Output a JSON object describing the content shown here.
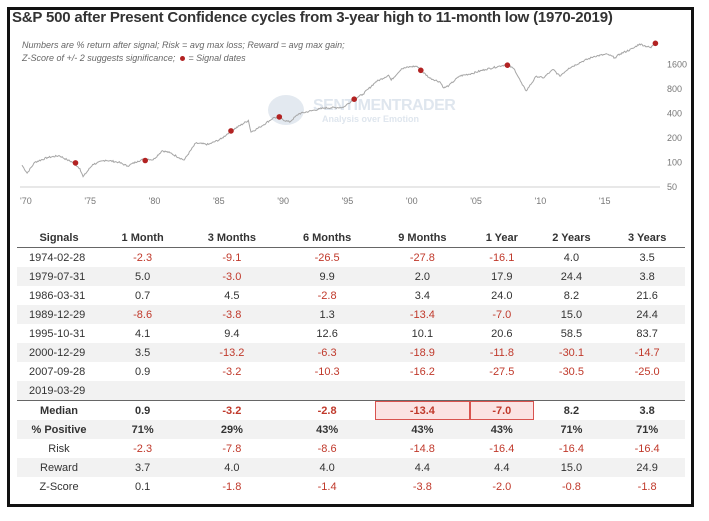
{
  "title": "S&P 500 after Present Confidence cycles from 3-year high to 11-month low (1970-2019)",
  "notes": {
    "line1": "Numbers are % return after signal; Risk = avg max loss; Reward = avg max gain;",
    "line2_prefix": "Z-Score of +/- 2 suggests significance;",
    "line2_suffix": "= Signal dates"
  },
  "watermark": {
    "brand": "SENTIMENTRADER",
    "tagline": "Analysis over Emotion"
  },
  "colors": {
    "line": "#a6a6a6",
    "signal": "#b22222",
    "negative": "#c0392b",
    "highlight_fill": "#fbe3e3",
    "highlight_border": "#d9534f"
  },
  "chart_data": {
    "type": "line",
    "y_scale": "log",
    "x_ticks": [
      "'70",
      "'75",
      "'80",
      "'85",
      "'90",
      "'95",
      "'00",
      "'05",
      "'10",
      "'15"
    ],
    "y_ticks": [
      "50",
      "100",
      "200",
      "400",
      "800",
      "1600"
    ],
    "xlim": [
      1970,
      2019.6
    ],
    "ylim": [
      50,
      3200
    ],
    "series": [
      {
        "x": [
          1970.0,
          1970.4,
          1971.0,
          1972.0,
          1972.9,
          1973.5,
          1974.0,
          1974.5,
          1974.75,
          1975.5,
          1976.5,
          1977.5,
          1978.2,
          1979.0,
          1979.6,
          1980.2,
          1980.9,
          1981.5,
          1982.6,
          1983.5,
          1984.5,
          1985.5,
          1986.2,
          1987.6,
          1987.8,
          1988.5,
          1989.6,
          1990.0,
          1990.8,
          1991.5,
          1992.5,
          1993.5,
          1994.5,
          1995.0,
          1995.8,
          1996.5,
          1997.5,
          1998.5,
          1998.7,
          1999.5,
          2000.2,
          2000.7,
          2001.0,
          2001.7,
          2002.5,
          2002.8,
          2003.2,
          2004.0,
          2005.0,
          2006.0,
          2007.0,
          2007.7,
          2008.3,
          2008.9,
          2009.2,
          2010.0,
          2010.5,
          2011.3,
          2011.8,
          2012.5,
          2013.5,
          2014.5,
          2015.5,
          2016.1,
          2016.5,
          2017.5,
          2018.0,
          2018.9,
          2019.0,
          2019.2
        ],
        "y": [
          90,
          72,
          98,
          112,
          118,
          105,
          97,
          82,
          65,
          92,
          104,
          98,
          88,
          101,
          108,
          105,
          136,
          128,
          104,
          168,
          162,
          190,
          235,
          320,
          230,
          265,
          348,
          340,
          305,
          385,
          420,
          455,
          460,
          465,
          585,
          670,
          950,
          1150,
          1000,
          1380,
          1460,
          1480,
          1320,
          1060,
          950,
          800,
          860,
          1120,
          1210,
          1350,
          1470,
          1560,
          1350,
          870,
          740,
          1120,
          1060,
          1350,
          1120,
          1400,
          1680,
          1960,
          2080,
          1880,
          2100,
          2450,
          2780,
          2500,
          2640,
          2830
        ]
      }
    ],
    "signals": [
      {
        "date": "1974-02-28",
        "x": 1974.16,
        "y": 96
      },
      {
        "date": "1979-07-31",
        "x": 1979.58,
        "y": 103
      },
      {
        "date": "1986-03-31",
        "x": 1986.25,
        "y": 238
      },
      {
        "date": "1989-12-29",
        "x": 1990.0,
        "y": 353
      },
      {
        "date": "1995-10-31",
        "x": 1995.83,
        "y": 582
      },
      {
        "date": "2000-12-29",
        "x": 2001.0,
        "y": 1320
      },
      {
        "date": "2007-09-28",
        "x": 2007.74,
        "y": 1527
      },
      {
        "date": "2019-03-29",
        "x": 2019.24,
        "y": 2834
      }
    ]
  },
  "table": {
    "headers": [
      "Signals",
      "1 Month",
      "3 Months",
      "6 Months",
      "9 Months",
      "1 Year",
      "2 Years",
      "3 Years"
    ],
    "rows": [
      [
        "1974-02-28",
        "-2.3",
        "-9.1",
        "-26.5",
        "-27.8",
        "-16.1",
        "4.0",
        "3.5"
      ],
      [
        "1979-07-31",
        "5.0",
        "-3.0",
        "9.9",
        "2.0",
        "17.9",
        "24.4",
        "3.8"
      ],
      [
        "1986-03-31",
        "0.7",
        "4.5",
        "-2.8",
        "3.4",
        "24.0",
        "8.2",
        "21.6"
      ],
      [
        "1989-12-29",
        "-8.6",
        "-3.8",
        "1.3",
        "-13.4",
        "-7.0",
        "15.0",
        "24.4"
      ],
      [
        "1995-10-31",
        "4.1",
        "9.4",
        "12.6",
        "10.1",
        "20.6",
        "58.5",
        "83.7"
      ],
      [
        "2000-12-29",
        "3.5",
        "-13.2",
        "-6.3",
        "-18.9",
        "-11.8",
        "-30.1",
        "-14.7"
      ],
      [
        "2007-09-28",
        "0.9",
        "-3.2",
        "-10.3",
        "-16.2",
        "-27.5",
        "-30.5",
        "-25.0"
      ],
      [
        "2019-03-29",
        "",
        "",
        "",
        "",
        "",
        "",
        ""
      ]
    ],
    "summary": [
      [
        "Median",
        "0.9",
        "-3.2",
        "-2.8",
        "-13.4",
        "-7.0",
        "8.2",
        "3.8"
      ],
      [
        "% Positive",
        "71%",
        "29%",
        "43%",
        "43%",
        "43%",
        "71%",
        "71%"
      ]
    ],
    "stats": [
      [
        "Risk",
        "-2.3",
        "-7.8",
        "-8.6",
        "-14.8",
        "-16.4",
        "-16.4",
        "-16.4"
      ],
      [
        "Reward",
        "3.7",
        "4.0",
        "4.0",
        "4.4",
        "4.4",
        "15.0",
        "24.9"
      ],
      [
        "Z-Score",
        "0.1",
        "-1.8",
        "-1.4",
        "-3.8",
        "-2.0",
        "-0.8",
        "-1.8"
      ]
    ],
    "highlighted_cells": [
      "Median.9 Months",
      "Median.1 Year"
    ]
  }
}
